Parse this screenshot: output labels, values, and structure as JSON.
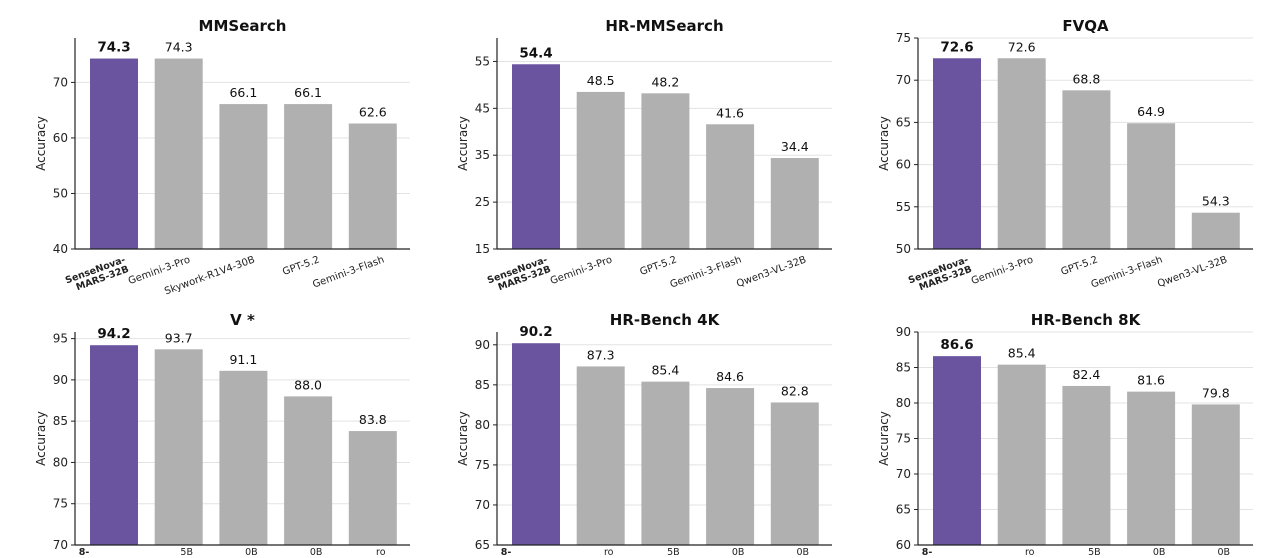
{
  "colors": {
    "highlight": "#6a54a0",
    "bar": "#b0b0b0",
    "grid": "#e3e3e3",
    "axis": "#222222"
  },
  "chart_data": [
    {
      "type": "bar",
      "title": "MMSearch",
      "ylabel": "Accuracy",
      "categories": [
        "SenseNova-\nMARS-32B",
        "Gemini-3-Pro",
        "Skywork-R1V4-30B",
        "GPT-5.2",
        "Gemini-3-Flash"
      ],
      "values": [
        74.3,
        74.3,
        66.1,
        66.1,
        62.6
      ],
      "value_labels": [
        "74.3",
        "74.3",
        "66.1",
        "66.1",
        "62.6"
      ],
      "ylim": [
        40,
        78
      ],
      "yticks": [
        40,
        50,
        60,
        70
      ],
      "highlight_index": 0,
      "grid": "horizontal"
    },
    {
      "type": "bar",
      "title": "HR-MMSearch",
      "ylabel": "Accuracy",
      "categories": [
        "SenseNova-\nMARS-32B",
        "Gemini-3-Pro",
        "GPT-5.2",
        "Gemini-3-Flash",
        "Qwen3-VL-32B"
      ],
      "values": [
        54.4,
        48.5,
        48.2,
        41.6,
        34.4
      ],
      "value_labels": [
        "54.4",
        "48.5",
        "48.2",
        "41.6",
        "34.4"
      ],
      "ylim": [
        15,
        60
      ],
      "yticks": [
        15,
        25,
        35,
        45,
        55
      ],
      "highlight_index": 0,
      "grid": "horizontal"
    },
    {
      "type": "bar",
      "title": "FVQA",
      "ylabel": "Accuracy",
      "categories": [
        "SenseNova-\nMARS-32B",
        "Gemini-3-Pro",
        "GPT-5.2",
        "Gemini-3-Flash",
        "Qwen3-VL-32B"
      ],
      "values": [
        72.6,
        72.6,
        68.8,
        64.9,
        54.3
      ],
      "value_labels": [
        "72.6",
        "72.6",
        "68.8",
        "64.9",
        "54.3"
      ],
      "ylim": [
        50,
        75
      ],
      "yticks": [
        50,
        55,
        60,
        65,
        70,
        75
      ],
      "highlight_index": 0,
      "grid": "horizontal"
    },
    {
      "type": "bar",
      "title": "V *",
      "ylabel": "Accuracy",
      "categories": [
        "",
        "",
        "",
        "",
        ""
      ],
      "tick_fragments": [
        "8-",
        "5B",
        "0B",
        "0B",
        "ro"
      ],
      "values": [
        94.2,
        93.7,
        91.1,
        88.0,
        83.8
      ],
      "value_labels": [
        "94.2",
        "93.7",
        "91.1",
        "88.0",
        "83.8"
      ],
      "ylim": [
        70,
        95.8
      ],
      "yticks": [
        70,
        75,
        80,
        85,
        90,
        95
      ],
      "highlight_index": 0,
      "grid": "horizontal"
    },
    {
      "type": "bar",
      "title": "HR-Bench 4K",
      "ylabel": "Accuracy",
      "categories": [
        "",
        "",
        "",
        "",
        ""
      ],
      "tick_fragments": [
        "8-",
        "ro",
        "5B",
        "0B",
        "0B"
      ],
      "values": [
        90.2,
        87.3,
        85.4,
        84.6,
        82.8
      ],
      "value_labels": [
        "90.2",
        "87.3",
        "85.4",
        "84.6",
        "82.8"
      ],
      "ylim": [
        65,
        91.6
      ],
      "yticks": [
        65,
        70,
        75,
        80,
        85,
        90
      ],
      "highlight_index": 0,
      "grid": "horizontal"
    },
    {
      "type": "bar",
      "title": "HR-Bench 8K",
      "ylabel": "Accuracy",
      "categories": [
        "",
        "",
        "",
        "",
        ""
      ],
      "tick_fragments": [
        "8-",
        "ro",
        "5B",
        "0B",
        "0B"
      ],
      "values": [
        86.6,
        85.4,
        82.4,
        81.6,
        79.8
      ],
      "value_labels": [
        "86.6",
        "85.4",
        "82.4",
        "81.6",
        "79.8"
      ],
      "ylim": [
        60,
        90
      ],
      "yticks": [
        60,
        65,
        70,
        75,
        80,
        85,
        90
      ],
      "highlight_index": 0,
      "grid": "horizontal"
    }
  ]
}
